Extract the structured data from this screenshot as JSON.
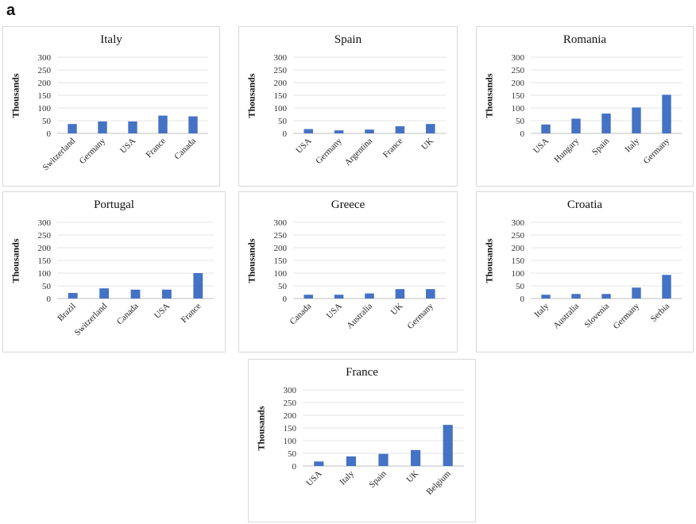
{
  "figure_label": "a",
  "chart_data": [
    {
      "type": "bar",
      "title": "Italy",
      "ylabel": "Thousands",
      "xlabel": "",
      "categories": [
        "Switzerland",
        "Germany",
        "USA",
        "France",
        "Canada"
      ],
      "values": [
        37,
        47,
        47,
        70,
        67
      ],
      "ylim": [
        0,
        300
      ],
      "yticks": [
        0,
        50,
        100,
        150,
        200,
        250,
        300
      ],
      "grid": true,
      "color": "#4472c4"
    },
    {
      "type": "bar",
      "title": "Spain",
      "ylabel": "Thousands",
      "xlabel": "",
      "categories": [
        "USA",
        "Germany",
        "Argentina",
        "France",
        "UK"
      ],
      "values": [
        17,
        12,
        15,
        28,
        37
      ],
      "ylim": [
        0,
        300
      ],
      "yticks": [
        0,
        50,
        100,
        150,
        200,
        250,
        300
      ],
      "grid": true,
      "color": "#4472c4"
    },
    {
      "type": "bar",
      "title": "Romania",
      "ylabel": "Thousands",
      "xlabel": "",
      "categories": [
        "USA",
        "Hungary",
        "Spain",
        "Italy",
        "Germany"
      ],
      "values": [
        35,
        58,
        78,
        102,
        152
      ],
      "ylim": [
        0,
        300
      ],
      "yticks": [
        0,
        50,
        100,
        150,
        200,
        250,
        300
      ],
      "grid": true,
      "color": "#4472c4"
    },
    {
      "type": "bar",
      "title": "Portugal",
      "ylabel": "Thousands",
      "xlabel": "",
      "categories": [
        "Brazil",
        "Switzerland",
        "Canada",
        "USA",
        "France"
      ],
      "values": [
        22,
        40,
        35,
        35,
        100
      ],
      "ylim": [
        0,
        300
      ],
      "yticks": [
        0,
        50,
        100,
        150,
        200,
        250,
        300
      ],
      "grid": true,
      "color": "#4472c4"
    },
    {
      "type": "bar",
      "title": "Greece",
      "ylabel": "Thousands",
      "xlabel": "",
      "categories": [
        "Canada",
        "USA",
        "Australia",
        "UK",
        "Germany"
      ],
      "values": [
        15,
        15,
        20,
        37,
        37
      ],
      "ylim": [
        0,
        300
      ],
      "yticks": [
        0,
        50,
        100,
        150,
        200,
        250,
        300
      ],
      "grid": true,
      "color": "#4472c4"
    },
    {
      "type": "bar",
      "title": "Croatia",
      "ylabel": "Thousands",
      "xlabel": "",
      "categories": [
        "Italy",
        "Australia",
        "Slovenia",
        "Germany",
        "Serbia"
      ],
      "values": [
        15,
        18,
        18,
        43,
        93
      ],
      "ylim": [
        0,
        300
      ],
      "yticks": [
        0,
        50,
        100,
        150,
        200,
        250,
        300
      ],
      "grid": true,
      "color": "#4472c4"
    },
    {
      "type": "bar",
      "title": "France",
      "ylabel": "Thousands",
      "xlabel": "",
      "categories": [
        "USA",
        "Italy",
        "Spain",
        "UK",
        "Belgium"
      ],
      "values": [
        18,
        38,
        48,
        63,
        162
      ],
      "ylim": [
        0,
        300
      ],
      "yticks": [
        0,
        50,
        100,
        150,
        200,
        250,
        300
      ],
      "grid": true,
      "color": "#4472c4"
    }
  ]
}
